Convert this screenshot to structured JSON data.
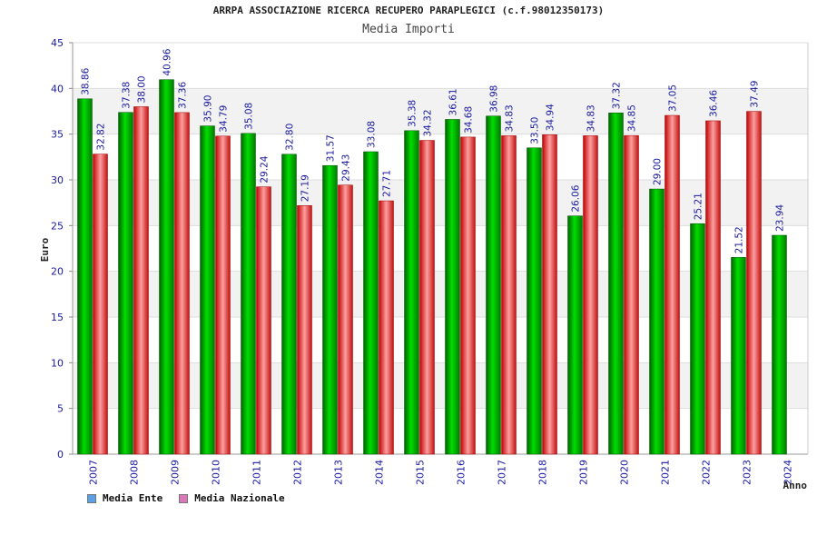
{
  "title": "ARRPA ASSOCIAZIONE RICERCA RECUPERO PARAPLEGICI (c.f.98012350173)",
  "subtitle": "Media Importi",
  "chart_data": {
    "type": "bar",
    "ylabel": "Euro",
    "xlabel": "Anno",
    "ylim": [
      0,
      45
    ],
    "yticks": [
      0,
      5,
      10,
      15,
      20,
      25,
      30,
      35,
      40,
      45
    ],
    "categories": [
      "2007",
      "2008",
      "2009",
      "2010",
      "2011",
      "2012",
      "2013",
      "2014",
      "2015",
      "2016",
      "2017",
      "2018",
      "2019",
      "2020",
      "2021",
      "2022",
      "2023",
      "2024"
    ],
    "series": [
      {
        "name": "Media Ente",
        "color": "#00b000",
        "legend_color": "#5aa0e6",
        "values": [
          38.86,
          37.38,
          40.96,
          35.9,
          35.08,
          32.8,
          31.57,
          33.08,
          35.38,
          36.61,
          36.98,
          33.5,
          26.06,
          37.32,
          29.0,
          25.21,
          21.52,
          23.94
        ],
        "labels": [
          "38.86",
          "37.38",
          "40.96",
          "35.90",
          "35.08",
          "32.80",
          "31.57",
          "33.08",
          "35.38",
          "36.61",
          "36.98",
          "33.50",
          "26.06",
          "37.32",
          "29.00",
          "25.21",
          "21.52",
          "23.94"
        ]
      },
      {
        "name": "Media Nazionale",
        "color": "#e62020",
        "legend_color": "#d878b8",
        "values": [
          32.82,
          38.0,
          37.36,
          34.79,
          29.24,
          27.19,
          29.43,
          27.71,
          34.32,
          34.68,
          34.83,
          34.94,
          34.83,
          34.85,
          37.05,
          36.46,
          37.49,
          null
        ],
        "labels": [
          "32.82",
          "38.00",
          "37.36",
          "34.79",
          "29.24",
          "27.19",
          "29.43",
          "27.71",
          "34.32",
          "34.68",
          "34.83",
          "34.94",
          "34.83",
          "34.85",
          "37.05",
          "36.46",
          "37.49",
          ""
        ]
      }
    ],
    "grid": true,
    "legend_position": "bottom-left"
  }
}
